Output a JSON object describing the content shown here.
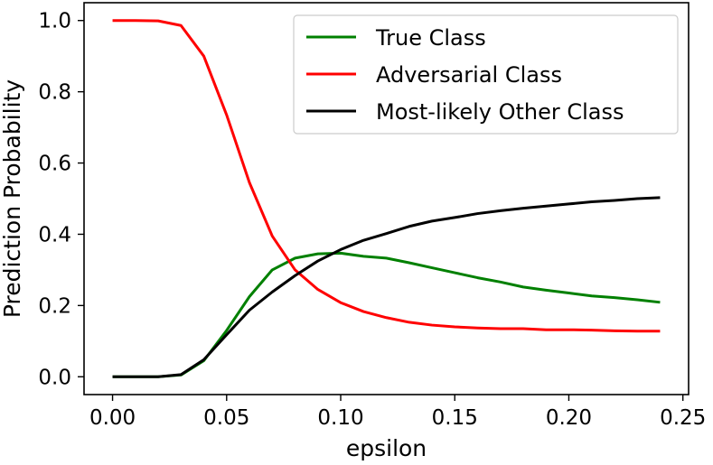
{
  "chart_data": {
    "type": "line",
    "title": "",
    "xlabel": "epsilon",
    "ylabel": "Prediction Probability",
    "xlim": [
      -0.0125,
      0.2525
    ],
    "ylim": [
      -0.05,
      1.05
    ],
    "x_ticks": [
      0.0,
      0.05,
      0.1,
      0.15,
      0.2,
      0.25
    ],
    "x_tick_labels": [
      "0.00",
      "0.05",
      "0.10",
      "0.15",
      "0.20",
      "0.25"
    ],
    "y_ticks": [
      0.0,
      0.2,
      0.4,
      0.6,
      0.8,
      1.0
    ],
    "y_tick_labels": [
      "0.0",
      "0.2",
      "0.4",
      "0.6",
      "0.8",
      "1.0"
    ],
    "grid": false,
    "legend_position": "top-right",
    "x": [
      0.0,
      0.01,
      0.02,
      0.03,
      0.04,
      0.05,
      0.06,
      0.07,
      0.08,
      0.09,
      0.1,
      0.11,
      0.12,
      0.13,
      0.14,
      0.15,
      0.16,
      0.17,
      0.18,
      0.19,
      0.2,
      0.21,
      0.22,
      0.23,
      0.24
    ],
    "series": [
      {
        "name": "True Class",
        "color": "#008000",
        "values": [
          0.0,
          0.0,
          0.0,
          0.005,
          0.045,
          0.13,
          0.225,
          0.3,
          0.333,
          0.345,
          0.347,
          0.338,
          0.333,
          0.32,
          0.306,
          0.292,
          0.278,
          0.266,
          0.252,
          0.243,
          0.235,
          0.227,
          0.222,
          0.216,
          0.209
        ]
      },
      {
        "name": "Adversarial Class",
        "color": "#ff0000",
        "values": [
          1.0,
          1.0,
          0.999,
          0.986,
          0.9,
          0.735,
          0.545,
          0.395,
          0.3,
          0.245,
          0.208,
          0.183,
          0.166,
          0.153,
          0.145,
          0.14,
          0.137,
          0.135,
          0.135,
          0.132,
          0.132,
          0.131,
          0.129,
          0.128,
          0.128
        ]
      },
      {
        "name": "Most-likely Other Class",
        "color": "#000000",
        "values": [
          0.0,
          0.0,
          0.0,
          0.006,
          0.048,
          0.118,
          0.187,
          0.238,
          0.284,
          0.325,
          0.357,
          0.383,
          0.402,
          0.422,
          0.437,
          0.447,
          0.458,
          0.466,
          0.473,
          0.479,
          0.485,
          0.491,
          0.495,
          0.5,
          0.503
        ]
      }
    ]
  }
}
